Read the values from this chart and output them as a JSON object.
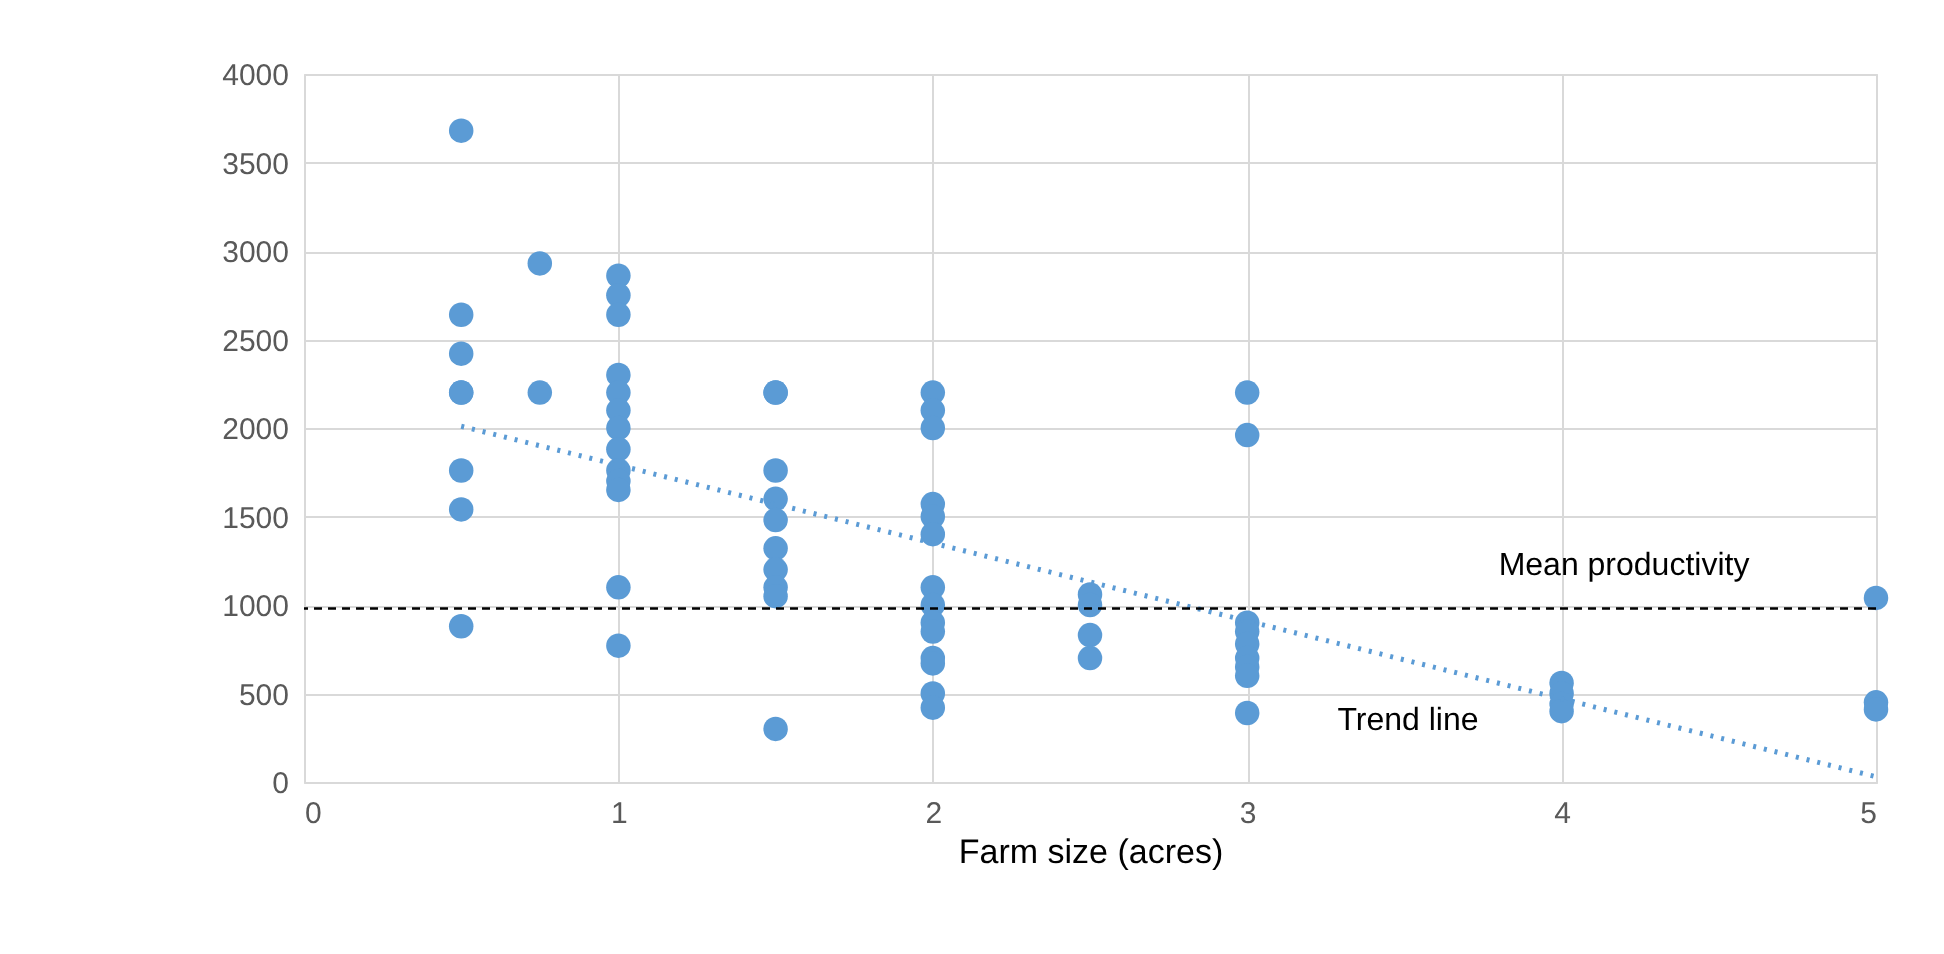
{
  "chart_data": {
    "type": "scatter",
    "xlabel": "Farm size (acres)",
    "xlim": [
      0,
      5
    ],
    "xticks": [
      0,
      1,
      2,
      3,
      4,
      5
    ],
    "ylim": [
      0,
      4000
    ],
    "yticks": [
      0,
      500,
      1000,
      1500,
      2000,
      2500,
      3000,
      3500,
      4000
    ],
    "grid": true,
    "series": [
      {
        "marker": "circle",
        "color": "#5b9bd5",
        "x": [
          0.5,
          0.5,
          0.5,
          0.5,
          0.5,
          0.5,
          0.5,
          0.5,
          0.75,
          0.75,
          1,
          1,
          1,
          1,
          1,
          1,
          1,
          1,
          1,
          1,
          1,
          1,
          1,
          1.5,
          1.5,
          1.5,
          1.5,
          1.5,
          1.5,
          1.5,
          1.5,
          1.5,
          1.5,
          2,
          2,
          2,
          2,
          2,
          2,
          2,
          2,
          2,
          2,
          2,
          2,
          2,
          2,
          2.5,
          2.5,
          2.5,
          2.5,
          3,
          3,
          3,
          3,
          3,
          3,
          3,
          3,
          3,
          4,
          4,
          4,
          4,
          5,
          5,
          5
        ],
        "values": [
          3680,
          2640,
          2420,
          2200,
          2200,
          1760,
          1540,
          880,
          2930,
          2200,
          2860,
          2750,
          2640,
          2300,
          2200,
          2100,
          2000,
          1880,
          1760,
          1700,
          1650,
          1100,
          770,
          2200,
          2200,
          1760,
          1600,
          1480,
          1320,
          1200,
          1100,
          1050,
          300,
          2200,
          2100,
          2000,
          1570,
          1500,
          1400,
          1100,
          1000,
          900,
          850,
          700,
          670,
          500,
          420,
          1060,
          1000,
          830,
          700,
          2200,
          1960,
          900,
          850,
          780,
          700,
          650,
          600,
          390,
          560,
          500,
          440,
          400,
          1040,
          450,
          410
        ]
      },
      {
        "type": "line",
        "color": "#5b9bd5",
        "line_style": "dotted",
        "x": [
          0.5,
          5
        ],
        "values": [
          2010,
          30
        ]
      }
    ],
    "annotations": [
      "Trend line"
    ],
    "ref_lines": [
      {
        "axis": "y",
        "value": 980,
        "label": "Mean productivity",
        "color": "#000000",
        "line_style": "dashed"
      }
    ]
  }
}
